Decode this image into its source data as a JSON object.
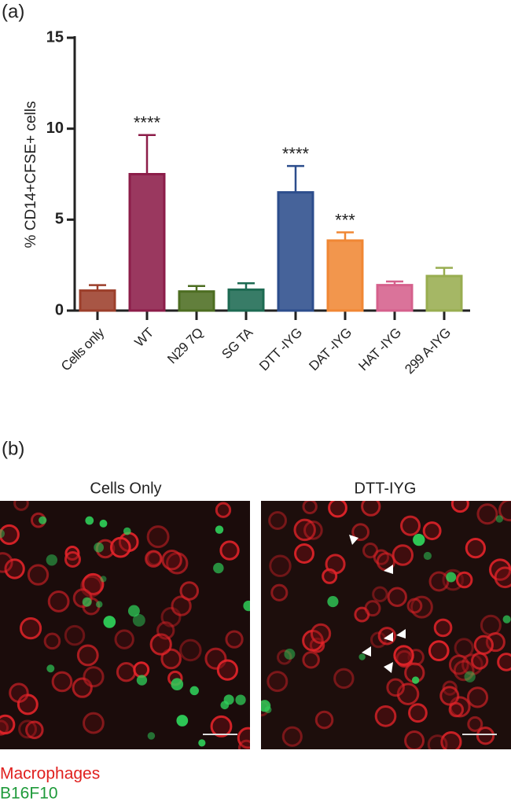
{
  "panel_a_label": "(a)",
  "chart_data": {
    "type": "bar",
    "ylabel": "% CD14+CFSE+ cells",
    "categories": [
      "Cells only",
      "WT",
      "N29 7Q",
      "SG TA",
      "DTT -IYG",
      "DAT -IYG",
      "HAT -IYG",
      "299 A-IYG"
    ],
    "values": [
      1.1,
      7.5,
      1.05,
      1.15,
      6.5,
      3.85,
      1.4,
      1.9
    ],
    "errors": [
      0.3,
      2.15,
      0.3,
      0.35,
      1.45,
      0.45,
      0.2,
      0.45
    ],
    "colors": [
      "#9c3f2b",
      "#8c1d49",
      "#4c6d21",
      "#1d6a52",
      "#2c4d8c",
      "#f08734",
      "#d5608c",
      "#98ad50"
    ],
    "significance": [
      null,
      "****",
      null,
      null,
      "****",
      "***",
      null,
      null
    ],
    "ylim": [
      0,
      15
    ],
    "yticks": [
      0,
      5,
      10,
      15
    ],
    "grid": false
  },
  "panel_b": {
    "label": "(b)",
    "images": [
      {
        "title": "Cells Only"
      },
      {
        "title": "DTT-IYG"
      }
    ],
    "legend": [
      {
        "text": "Macrophages",
        "color": "#e0201e"
      },
      {
        "text": "B16F10",
        "color": "#1e9a3a"
      }
    ]
  }
}
